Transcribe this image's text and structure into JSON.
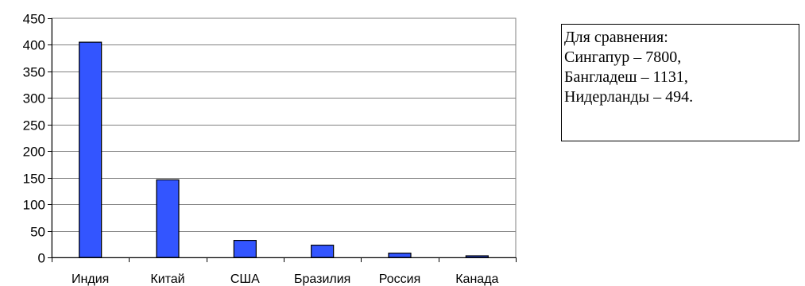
{
  "chart_data": {
    "type": "bar",
    "categories": [
      "Индия",
      "Китай",
      "США",
      "Бразилия",
      "Россия",
      "Канада"
    ],
    "values": [
      405,
      146,
      32,
      23,
      8,
      3
    ],
    "ylim": [
      0,
      450
    ],
    "yticks": [
      0,
      50,
      100,
      150,
      200,
      250,
      300,
      350,
      400,
      450
    ],
    "title": "",
    "xlabel": "",
    "ylabel": "",
    "grid": "horizontal",
    "legend": "none",
    "bar_color": "#3355ff"
  },
  "note": {
    "lines": [
      "Для сравнения:",
      "Сингапур – 7800,",
      "Бангладеш – 1131,",
      "Нидерланды – 494."
    ]
  }
}
